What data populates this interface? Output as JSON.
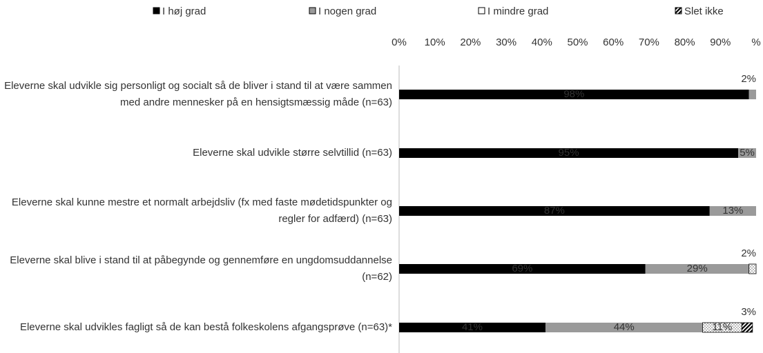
{
  "chart_data": {
    "type": "stacked-bar-horizontal",
    "categories": [
      "Eleverne skal udvikle sig personligt og socialt så de bliver i stand til at være sammen med andre mennesker på en hensigtsmæssig måde (n=63)",
      "Eleverne skal udvikle større selvtillid (n=63)",
      "Eleverne skal kunne mestre et normalt arbejdsliv (fx med faste mødetidspunkter og regler for adfærd) (n=63)",
      "Eleverne skal blive i stand til at påbegynde og gennemføre en ungdomsuddannelse (n=62)",
      "Eleverne skal udvikles fagligt så de kan bestå folkeskolens afgangsprøve (n=63)*"
    ],
    "series": [
      {
        "name": "I høj grad",
        "color": "#000000",
        "values": [
          98,
          95,
          87,
          69,
          41
        ],
        "value_labels": [
          "98%",
          "95%",
          "87%",
          "69%",
          "41%"
        ]
      },
      {
        "name": "I nogen grad",
        "color": "#9a9a9a",
        "values": [
          2,
          5,
          13,
          29,
          44
        ],
        "value_labels": [
          "2%",
          "5%",
          "13%",
          "29%",
          "44%"
        ]
      },
      {
        "name": "I mindre grad",
        "color": "#ffffff",
        "values": [
          null,
          null,
          null,
          2,
          11
        ],
        "value_labels": [
          null,
          null,
          null,
          "2%",
          "11%"
        ]
      },
      {
        "name": "Slet ikke",
        "color": "#000000",
        "values": [
          null,
          null,
          null,
          null,
          3
        ],
        "value_labels": [
          null,
          null,
          null,
          null,
          "3%"
        ]
      }
    ],
    "xlim": [
      0,
      100
    ],
    "xticks": [
      {
        "value": 0,
        "label": "0%"
      },
      {
        "value": 10,
        "label": "10%"
      },
      {
        "value": 20,
        "label": "20%"
      },
      {
        "value": 30,
        "label": "30%"
      },
      {
        "value": 40,
        "label": "40%"
      },
      {
        "value": 50,
        "label": "50%"
      },
      {
        "value": 60,
        "label": "60%"
      },
      {
        "value": 70,
        "label": "70%"
      },
      {
        "value": 80,
        "label": "80%"
      },
      {
        "value": 90,
        "label": "90%"
      },
      {
        "value": 100,
        "label": "%"
      }
    ],
    "legend": "top"
  }
}
